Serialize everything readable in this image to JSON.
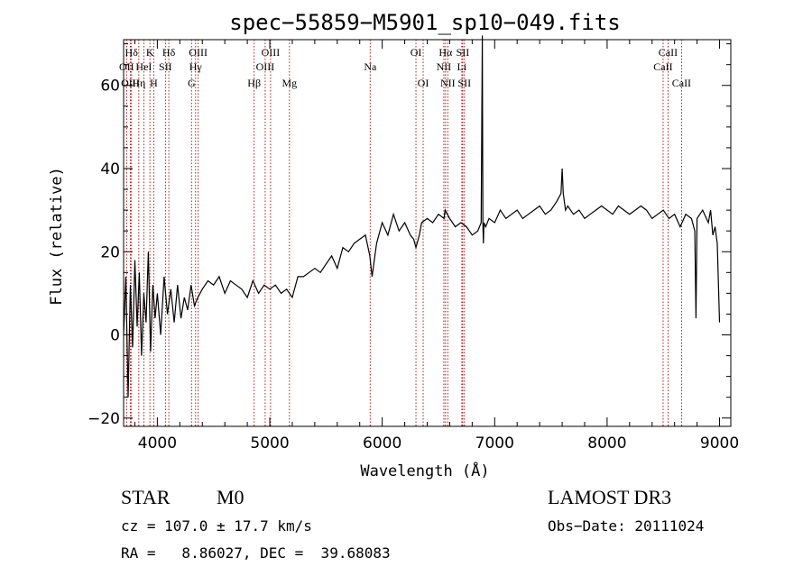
{
  "chart_data": {
    "type": "line",
    "title": "spec−55859−M5901_sp10−049.fits",
    "xlabel": "Wavelength (Å)",
    "ylabel": "Flux (relative)",
    "xlim": [
      3700,
      9100
    ],
    "ylim": [
      -22,
      71
    ],
    "xticks": [
      4000,
      5000,
      6000,
      7000,
      8000,
      9000
    ],
    "yticks": [
      -20,
      0,
      20,
      40,
      60
    ],
    "ytick_labels": [
      "−20",
      "0",
      "20",
      "40",
      "60"
    ],
    "series": [
      {
        "name": "flux",
        "x": [
          3700,
          3720,
          3740,
          3760,
          3780,
          3800,
          3820,
          3840,
          3860,
          3880,
          3900,
          3920,
          3940,
          3960,
          3980,
          4000,
          4030,
          4060,
          4090,
          4120,
          4150,
          4180,
          4210,
          4240,
          4270,
          4300,
          4330,
          4360,
          4400,
          4450,
          4500,
          4550,
          4600,
          4650,
          4700,
          4750,
          4800,
          4850,
          4900,
          4950,
          5000,
          5050,
          5100,
          5150,
          5200,
          5250,
          5300,
          5350,
          5400,
          5450,
          5500,
          5550,
          5600,
          5650,
          5700,
          5750,
          5800,
          5850,
          5890,
          5910,
          5950,
          6000,
          6050,
          6100,
          6150,
          6200,
          6250,
          6280,
          6300,
          6330,
          6350,
          6400,
          6450,
          6500,
          6550,
          6560,
          6600,
          6650,
          6700,
          6750,
          6800,
          6850,
          6880,
          6890,
          6895,
          6900,
          6905,
          6920,
          6950,
          7000,
          7050,
          7100,
          7150,
          7200,
          7250,
          7300,
          7350,
          7400,
          7450,
          7500,
          7550,
          7590,
          7600,
          7610,
          7630,
          7650,
          7700,
          7750,
          7800,
          7850,
          7900,
          7950,
          8000,
          8050,
          8100,
          8150,
          8200,
          8250,
          8300,
          8350,
          8400,
          8450,
          8500,
          8550,
          8600,
          8650,
          8700,
          8750,
          8780,
          8790,
          8800,
          8850,
          8900,
          8920,
          8940,
          8960,
          8980,
          9000
        ],
        "y": [
          0,
          14,
          -15,
          12,
          -3,
          18,
          2,
          15,
          -5,
          10,
          3,
          20,
          -4,
          12,
          4,
          10,
          0,
          14,
          5,
          11,
          3,
          12,
          4,
          9,
          6,
          12,
          7,
          9,
          11,
          13,
          12,
          14,
          10,
          13,
          12,
          11,
          9,
          13,
          10,
          12,
          11,
          12,
          10,
          11,
          9,
          14,
          14,
          15,
          16,
          15,
          17,
          19,
          16,
          21,
          20,
          22,
          23,
          24,
          19,
          14,
          22,
          27,
          24,
          29,
          25,
          27,
          24,
          23,
          21,
          24,
          27,
          28,
          27,
          29,
          28,
          30,
          28,
          26,
          27,
          26,
          24,
          25,
          27,
          72,
          27,
          22,
          27,
          26,
          28,
          27,
          30,
          28,
          29,
          30,
          28,
          29,
          30,
          31,
          29,
          30,
          32,
          34,
          40,
          34,
          30,
          31,
          29,
          30,
          28,
          29,
          30,
          31,
          30,
          29,
          31,
          30,
          29,
          30,
          31,
          30,
          28,
          29,
          30,
          28,
          29,
          26,
          29,
          28,
          25,
          4,
          28,
          30,
          27,
          30,
          24,
          26,
          22,
          3
        ]
      }
    ],
    "lines_row1": [
      {
        "text": "Hδ",
        "w": 3770
      },
      {
        "text": "K",
        "w": 3934
      },
      {
        "text": "Hδ",
        "w": 4102
      },
      {
        "text": "OIII",
        "w": 4363
      },
      {
        "text": "OIII",
        "w": 5007
      },
      {
        "text": "OI",
        "w": 6300
      },
      {
        "text": "Hα",
        "w": 6563
      },
      {
        "text": "SII",
        "w": 6716
      },
      {
        "text": "CaII",
        "w": 8542
      }
    ],
    "lines_row2": [
      {
        "text": "OII",
        "w": 3727
      },
      {
        "text": "HeI",
        "w": 3880
      },
      {
        "text": "SII",
        "w": 4072
      },
      {
        "text": "Hγ",
        "w": 4340
      },
      {
        "text": "OIII",
        "w": 4959
      },
      {
        "text": "Na",
        "w": 5893
      },
      {
        "text": "NII",
        "w": 6548
      },
      {
        "text": "Li",
        "w": 6708
      },
      {
        "text": "CaII",
        "w": 8498
      }
    ],
    "lines_row3": [
      {
        "text": "OIII",
        "w": 3760
      },
      {
        "text": "Hη",
        "w": 3835
      },
      {
        "text": "H",
        "w": 3968
      },
      {
        "text": "G",
        "w": 4304
      },
      {
        "text": "Hβ",
        "w": 4861
      },
      {
        "text": "Mg",
        "w": 5175
      },
      {
        "text": "OI",
        "w": 6364
      },
      {
        "text": "NII",
        "w": 6583
      },
      {
        "text": "SII",
        "w": 6731
      },
      {
        "text": "CaII",
        "w": 8662
      }
    ],
    "line_markers": [
      3727,
      3760,
      3770,
      3835,
      3880,
      3934,
      3968,
      4072,
      4102,
      4304,
      4340,
      4363,
      4861,
      4959,
      5007,
      5175,
      5893,
      6300,
      6364,
      6548,
      6563,
      6583,
      6708,
      6716,
      6731,
      8498,
      8542,
      8662
    ]
  },
  "info": {
    "obj_class": "STAR",
    "subclass": "M0",
    "survey": "LAMOST DR3",
    "cz": "cz = 107.0 ± 17.7 km/s",
    "obs_date": "Obs−Date: 20111024",
    "radec": "RA =   8.86027, DEC =  39.68083"
  },
  "colors": {
    "line_marker": "#b00000",
    "spectrum": "#000000",
    "axis": "#000000"
  }
}
